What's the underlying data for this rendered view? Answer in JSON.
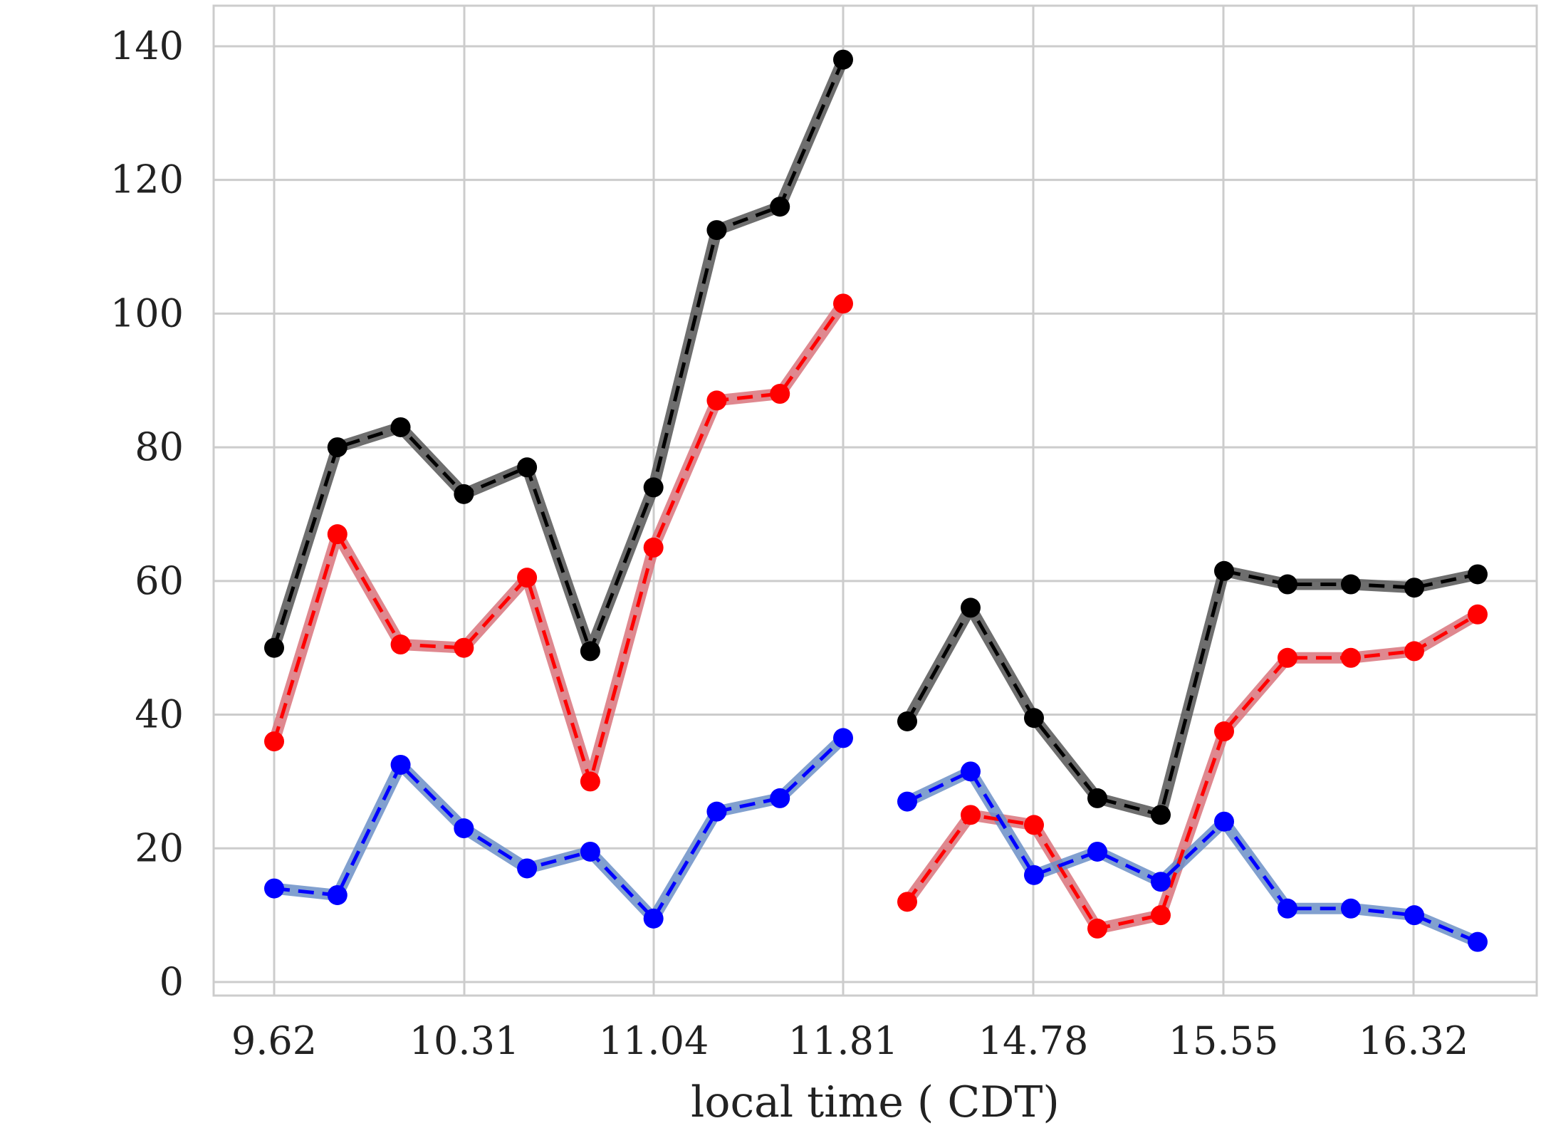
{
  "chart_data": {
    "type": "line",
    "title": "",
    "xlabel": "local time ( CDT)",
    "ylabel": "",
    "ylim": [
      0,
      145
    ],
    "y_ticks": [
      0,
      20,
      40,
      60,
      80,
      100,
      120,
      140
    ],
    "x_tick_labels": [
      "9.62",
      "10.31",
      "11.04",
      "11.81",
      "14.78",
      "15.55",
      "16.32"
    ],
    "grid": true,
    "legend": "none",
    "segments": [
      {
        "x": [
          0,
          1,
          2,
          3,
          4,
          5,
          6,
          7,
          8,
          9
        ],
        "series": [
          {
            "color": "#000000",
            "band_color": "#555555",
            "values": [
              50,
              80,
              83,
              73,
              77,
              49.5,
              74,
              112.5,
              116,
              138
            ]
          },
          {
            "color": "#ff0000",
            "band_color": "#d9737b",
            "values": [
              36,
              67,
              50.5,
              50,
              60.5,
              30,
              65,
              87,
              88,
              101.5
            ]
          },
          {
            "color": "#0000ff",
            "band_color": "#6b8fc7",
            "values": [
              14,
              13,
              32.5,
              23,
              17,
              19.5,
              9.5,
              25.5,
              27.5,
              36.5
            ]
          }
        ]
      },
      {
        "x": [
          10,
          11,
          12,
          13,
          14,
          15,
          16,
          17,
          18,
          19
        ],
        "series": [
          {
            "color": "#000000",
            "band_color": "#555555",
            "values": [
              39,
              56,
              39.5,
              27.5,
              25,
              61.5,
              59.5,
              59.5,
              59,
              61
            ]
          },
          {
            "color": "#ff0000",
            "band_color": "#d9737b",
            "values": [
              12,
              25,
              23.5,
              8,
              10,
              37.5,
              48.5,
              48.5,
              49.5,
              55
            ]
          },
          {
            "color": "#0000ff",
            "band_color": "#6b8fc7",
            "values": [
              27,
              31.5,
              16,
              19.5,
              15,
              24,
              11,
              11,
              10,
              6
            ]
          }
        ]
      }
    ]
  }
}
